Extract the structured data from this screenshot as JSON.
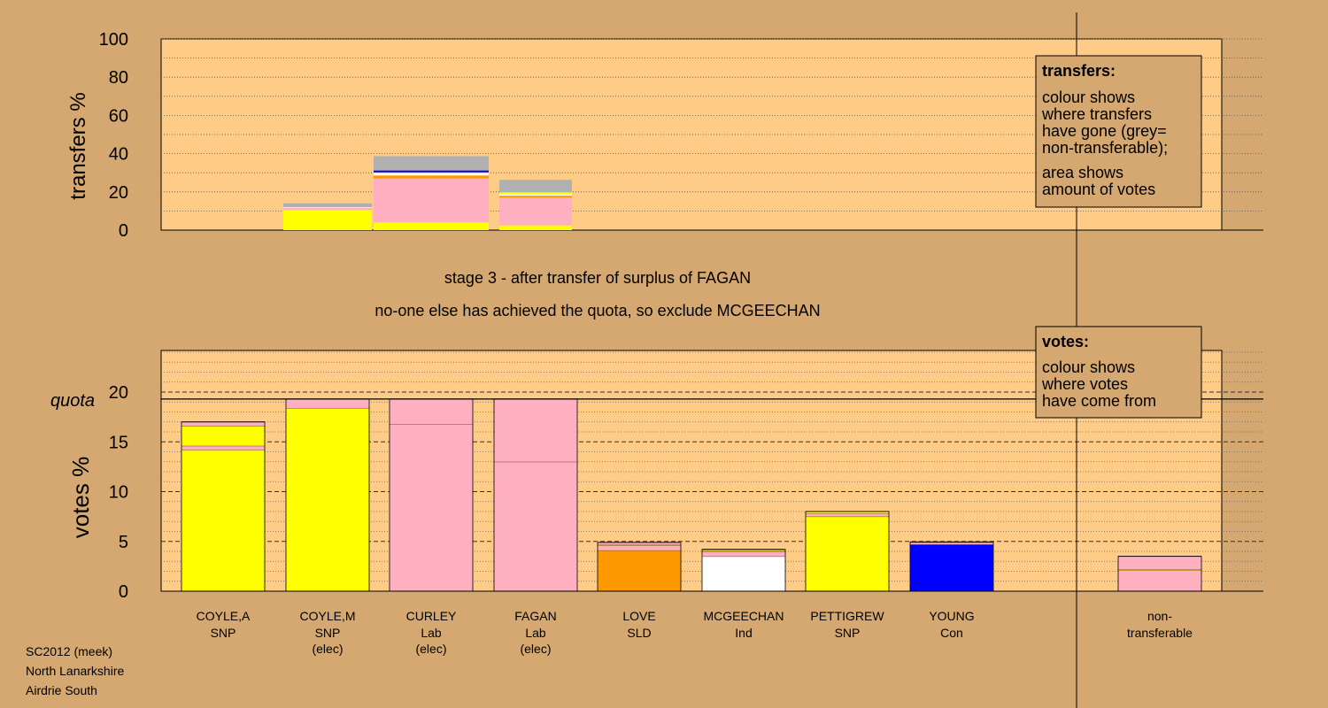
{
  "colors": {
    "background": "#d4a870",
    "plot_area": "#ffcc88",
    "SNP": "#ffff00",
    "Lab": "#ffb0c0",
    "SLD": "#ff9900",
    "Ind": "#ffffff",
    "Con": "#0000ff",
    "nontransferable": "#b0b0b0"
  },
  "chart_data": [
    {
      "type": "bar",
      "stacked": true,
      "ylabel": "transfers %",
      "ylim": [
        0,
        100
      ],
      "yticks": [
        "0",
        "20",
        "40",
        "60",
        "80",
        "100"
      ],
      "grid": true,
      "categories": [
        "COYLE,A",
        "COYLE,M",
        "CURLEY",
        "FAGAN",
        "LOVE",
        "MCGEECHAN",
        "PETTIGREW",
        "YOUNG"
      ],
      "bars": [
        {
          "category": "COYLE,M",
          "segments": [
            {
              "party": "SNP",
              "color": "#ffff00",
              "value": 10.5
            },
            {
              "party": "Lab",
              "color": "#ffb0c0",
              "value": 1.2
            },
            {
              "party": "other",
              "color": "#ffffff",
              "value": 0.3
            },
            {
              "party": "non-transferable",
              "color": "#b0b0b0",
              "value": 2.0
            }
          ]
        },
        {
          "category": "CURLEY",
          "segments": [
            {
              "party": "SNP",
              "color": "#ffff00",
              "value": 4.0
            },
            {
              "party": "Lab",
              "color": "#ffb0c0",
              "value": 23.0
            },
            {
              "party": "SLD",
              "color": "#ff9900",
              "value": 1.6
            },
            {
              "party": "Ind",
              "color": "#ffffff",
              "value": 1.0
            },
            {
              "party": "SNP",
              "color": "#ffff00",
              "value": 0.6
            },
            {
              "party": "Con",
              "color": "#0000ff",
              "value": 1.0
            },
            {
              "party": "non-transferable",
              "color": "#b0b0b0",
              "value": 7.5
            }
          ]
        },
        {
          "category": "FAGAN",
          "segments": [
            {
              "party": "SNP",
              "color": "#ffff00",
              "value": 2.5
            },
            {
              "party": "Lab",
              "color": "#ffb0c0",
              "value": 14.5
            },
            {
              "party": "SLD",
              "color": "#ff9900",
              "value": 1.0
            },
            {
              "party": "Ind",
              "color": "#ffffff",
              "value": 0.8
            },
            {
              "party": "SNP",
              "color": "#ffff00",
              "value": 1.0
            },
            {
              "party": "non-transferable",
              "color": "#b0b0b0",
              "value": 6.5
            }
          ]
        }
      ]
    },
    {
      "type": "bar",
      "stacked": true,
      "ylabel": "votes %",
      "ylim": [
        0,
        25
      ],
      "yticks": [
        "0",
        "5",
        "10",
        "15",
        "20"
      ],
      "quota": 19.3,
      "quota_label": "quota",
      "grid": true,
      "categories": [
        "COYLE,A",
        "COYLE,M",
        "CURLEY",
        "FAGAN",
        "LOVE",
        "MCGEECHAN",
        "PETTIGREW",
        "YOUNG",
        "non-transferable"
      ],
      "bars": [
        {
          "category": "COYLE,A",
          "segments": [
            {
              "party": "SNP",
              "color": "#ffff00",
              "value": 14.2
            },
            {
              "party": "Lab",
              "color": "#ffb0c0",
              "value": 0.4
            },
            {
              "party": "SNP",
              "color": "#ffff00",
              "value": 2.0
            },
            {
              "party": "Lab",
              "color": "#ffb0c0",
              "value": 0.4
            }
          ]
        },
        {
          "category": "COYLE,M",
          "segments": [
            {
              "party": "SNP",
              "color": "#ffff00",
              "value": 18.4
            },
            {
              "party": "Lab",
              "color": "#ffb0c0",
              "value": 0.9
            }
          ]
        },
        {
          "category": "CURLEY",
          "segments": [
            {
              "party": "Lab",
              "color": "#ffb0c0",
              "value": 16.8
            },
            {
              "party": "Lab",
              "color": "#ffb0c0",
              "value": 2.5
            }
          ]
        },
        {
          "category": "FAGAN",
          "segments": [
            {
              "party": "Lab",
              "color": "#ffb0c0",
              "value": 13.0
            },
            {
              "party": "Lab",
              "color": "#ffb0c0",
              "value": 6.3
            }
          ]
        },
        {
          "category": "LOVE",
          "segments": [
            {
              "party": "SLD",
              "color": "#ff9900",
              "value": 4.1
            },
            {
              "party": "Lab",
              "color": "#ffb0c0",
              "value": 0.5
            },
            {
              "party": "SNP",
              "color": "#ffff00",
              "value": 0.1
            },
            {
              "party": "Lab",
              "color": "#ffb0c0",
              "value": 0.2
            }
          ]
        },
        {
          "category": "MCGEECHAN",
          "segments": [
            {
              "party": "Ind",
              "color": "#ffffff",
              "value": 3.5
            },
            {
              "party": "Lab",
              "color": "#ffb0c0",
              "value": 0.5
            },
            {
              "party": "SNP",
              "color": "#ffff00",
              "value": 0.1
            },
            {
              "party": "Lab",
              "color": "#ffb0c0",
              "value": 0.1
            }
          ]
        },
        {
          "category": "PETTIGREW",
          "segments": [
            {
              "party": "SNP",
              "color": "#ffff00",
              "value": 7.5
            },
            {
              "party": "Lab",
              "color": "#ffb0c0",
              "value": 0.3
            },
            {
              "party": "SNP",
              "color": "#ffff00",
              "value": 0.2
            }
          ]
        },
        {
          "category": "YOUNG",
          "segments": [
            {
              "party": "Con",
              "color": "#0000ff",
              "value": 4.7
            },
            {
              "party": "Lab",
              "color": "#ffb0c0",
              "value": 0.2
            },
            {
              "party": "SNP",
              "color": "#ffff00",
              "value": 0.05
            }
          ]
        },
        {
          "category": "non-transferable",
          "segments": [
            {
              "party": "SNP",
              "color": "#ffb0c0",
              "value": 2.1
            },
            {
              "party": "Lab",
              "color": "#ffff00",
              "value": 0.1
            },
            {
              "party": "Lab",
              "color": "#ffb0c0",
              "value": 1.3
            }
          ]
        }
      ]
    }
  ],
  "candidates": [
    {
      "name": "COYLE,A",
      "party": "SNP",
      "status": ""
    },
    {
      "name": "COYLE,M",
      "party": "SNP",
      "status": "(elec)"
    },
    {
      "name": "CURLEY",
      "party": "Lab",
      "status": "(elec)"
    },
    {
      "name": "FAGAN",
      "party": "Lab",
      "status": "(elec)"
    },
    {
      "name": "LOVE",
      "party": "SLD",
      "status": ""
    },
    {
      "name": "MCGEECHAN",
      "party": "Ind",
      "status": ""
    },
    {
      "name": "PETTIGREW",
      "party": "SNP",
      "status": ""
    },
    {
      "name": "YOUNG",
      "party": "Con",
      "status": ""
    }
  ],
  "nontransferable_label": {
    "line1": "non-",
    "line2": "transferable"
  },
  "stage": {
    "line1": "stage 3 - after transfer of surplus of FAGAN",
    "line2": "no-one else has achieved the quota, so exclude MCGEECHAN"
  },
  "legend_transfers": {
    "title": "transfers:",
    "lines": [
      "colour shows",
      "where transfers",
      "have gone (grey=",
      "non-transferable);",
      "area shows",
      "amount of votes"
    ]
  },
  "legend_votes": {
    "title": "votes:",
    "lines": [
      "colour shows",
      "where votes",
      "have come from"
    ]
  },
  "footer": {
    "line1": "SC2012 (meek)",
    "line2": "North Lanarkshire",
    "line3": "Airdrie South"
  }
}
